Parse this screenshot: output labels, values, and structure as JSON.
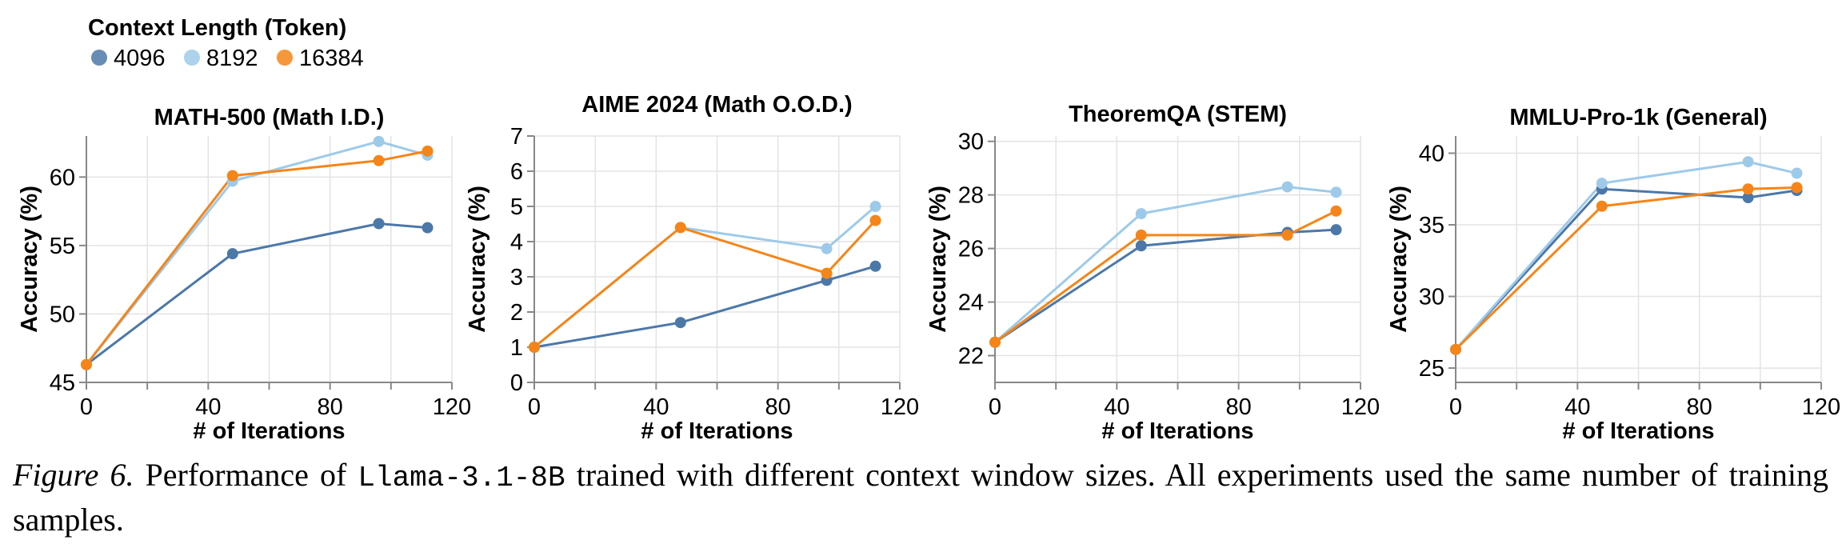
{
  "legend": {
    "title": "Context Length (Token)",
    "items": [
      {
        "label": "4096",
        "color": "#4c78a8"
      },
      {
        "label": "8192",
        "color": "#9ecae9"
      },
      {
        "label": "16384",
        "color": "#f58518"
      }
    ]
  },
  "caption": {
    "lead": "Figure 6.",
    "text1": " Performance of ",
    "model": "Llama-3.1-8B",
    "text2": " trained with different context window sizes.  All experiments used the same number of training samples."
  },
  "chart_data": [
    {
      "type": "line",
      "title": "MATH-500 (Math I.D.)",
      "xlabel": "# of Iterations",
      "ylabel": "Accuracy (%)",
      "xlim": [
        0,
        120
      ],
      "ylim": [
        45,
        63
      ],
      "xticks": [
        0,
        40,
        80,
        120
      ],
      "yticks": [
        45,
        50,
        55,
        60
      ],
      "x": [
        0,
        48,
        96,
        112
      ],
      "series": [
        {
          "name": "4096",
          "values": [
            46.3,
            54.4,
            56.6,
            56.3
          ]
        },
        {
          "name": "8192",
          "values": [
            46.3,
            59.7,
            62.6,
            61.6
          ]
        },
        {
          "name": "16384",
          "values": [
            46.3,
            60.1,
            61.2,
            61.9
          ]
        }
      ]
    },
    {
      "type": "line",
      "title": "AIME 2024 (Math O.O.D.)",
      "xlabel": "# of Iterations",
      "ylabel": "Accuracy (%)",
      "xlim": [
        0,
        120
      ],
      "ylim": [
        0,
        7
      ],
      "xticks": [
        0,
        40,
        80,
        120
      ],
      "yticks": [
        0,
        1,
        2,
        3,
        4,
        5,
        6,
        7
      ],
      "x": [
        0,
        48,
        96,
        112
      ],
      "series": [
        {
          "name": "4096",
          "values": [
            1.0,
            1.7,
            2.9,
            3.3
          ]
        },
        {
          "name": "8192",
          "values": [
            1.0,
            4.4,
            3.8,
            5.0
          ]
        },
        {
          "name": "16384",
          "values": [
            1.0,
            4.4,
            3.1,
            4.6
          ]
        }
      ]
    },
    {
      "type": "line",
      "title": "TheoremQA (STEM)",
      "xlabel": "# of Iterations",
      "ylabel": "Accuracy (%)",
      "xlim": [
        0,
        120
      ],
      "ylim": [
        21,
        30.2
      ],
      "xticks": [
        0,
        40,
        80,
        120
      ],
      "yticks": [
        22,
        24,
        26,
        28,
        30
      ],
      "x": [
        0,
        48,
        96,
        112
      ],
      "series": [
        {
          "name": "4096",
          "values": [
            22.5,
            26.1,
            26.6,
            26.7
          ]
        },
        {
          "name": "8192",
          "values": [
            22.5,
            27.3,
            28.3,
            28.1
          ]
        },
        {
          "name": "16384",
          "values": [
            22.5,
            26.5,
            26.5,
            27.4
          ]
        }
      ]
    },
    {
      "type": "line",
      "title": "MMLU-Pro-1k (General)",
      "xlabel": "# of Iterations",
      "ylabel": "Accuracy (%)",
      "xlim": [
        0,
        120
      ],
      "ylim": [
        24,
        41.2
      ],
      "xticks": [
        0,
        40,
        80,
        120
      ],
      "yticks": [
        25,
        30,
        35,
        40
      ],
      "x": [
        0,
        48,
        96,
        112
      ],
      "series": [
        {
          "name": "4096",
          "values": [
            26.3,
            37.5,
            36.9,
            37.4
          ]
        },
        {
          "name": "8192",
          "values": [
            26.3,
            37.9,
            39.4,
            38.6
          ]
        },
        {
          "name": "16384",
          "values": [
            26.3,
            36.3,
            37.5,
            37.6
          ]
        }
      ]
    }
  ]
}
